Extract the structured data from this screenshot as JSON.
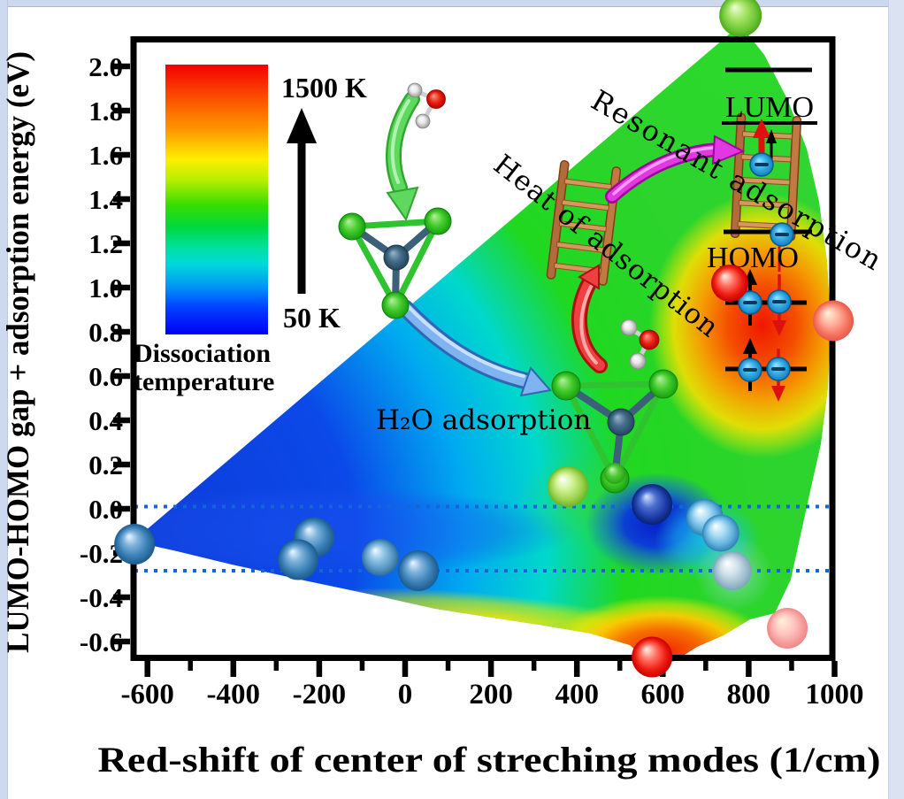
{
  "page": {
    "background": "#ffffff",
    "chrome_color": "#ccd8ee"
  },
  "chart_data": {
    "type": "scatter",
    "title": "",
    "xlabel": "Red-shift of center of streching modes (1/cm)",
    "ylabel": "LUMO-HOMO gap + adsorption energy (eV)",
    "xlim": [
      -650,
      1010
    ],
    "ylim": [
      -0.68,
      2.12
    ],
    "x_ticks": [
      -600,
      -400,
      -200,
      0,
      200,
      400,
      600,
      800,
      1000
    ],
    "y_ticks": [
      2.0,
      1.8,
      1.6,
      1.4,
      1.2,
      1.0,
      0.8,
      0.6,
      0.4,
      0.2,
      0.0,
      -0.2,
      -0.4,
      -0.6
    ],
    "grid": false,
    "reference_lines_y": [
      0.01,
      -0.28
    ],
    "reference_line_color": "#1565d8",
    "colorbar": {
      "top_label": "1500 K",
      "bottom_label": "50 K",
      "caption_line1": "Dissociation",
      "caption_line2": "temperature",
      "gradient_top_to_bottom": [
        "#f40000",
        "#ff9e00",
        "#ffee00",
        "#38dd00",
        "#00d8dc",
        "#0000f4"
      ]
    },
    "background_surface": "interpolated dissociation-temperature color map (blue=cold 50 K, red=hot 1500 K)",
    "series": [
      {
        "name": "cluster data points",
        "points": [
          {
            "x": -630,
            "y": -0.16,
            "r": 23,
            "color": "steelblue"
          },
          {
            "x": -212,
            "y": -0.13,
            "r": 23,
            "color": "steelblue"
          },
          {
            "x": -249,
            "y": -0.23,
            "r": 23,
            "color": "steelblue"
          },
          {
            "x": -58,
            "y": -0.22,
            "r": 21,
            "color": "lightsteel"
          },
          {
            "x": 31,
            "y": -0.28,
            "r": 23,
            "color": "steelblue"
          },
          {
            "x": 379,
            "y": 0.1,
            "r": 23,
            "color": "yellowgreen"
          },
          {
            "x": 488,
            "y": 0.16,
            "r": 12,
            "color": "smallgreen"
          },
          {
            "x": 575,
            "y": 0.02,
            "r": 23,
            "color": "navy"
          },
          {
            "x": 698,
            "y": -0.04,
            "r": 21,
            "color": "skyblue"
          },
          {
            "x": 735,
            "y": -0.11,
            "r": 21,
            "color": "skyblue"
          },
          {
            "x": 762,
            "y": -0.28,
            "r": 22,
            "color": "paleblue"
          },
          {
            "x": 890,
            "y": -0.54,
            "r": 23,
            "color": "pink"
          },
          {
            "x": 575,
            "y": -0.67,
            "r": 23,
            "color": "red"
          },
          {
            "x": 756,
            "y": 1.02,
            "r": 21,
            "color": "red"
          },
          {
            "x": 997,
            "y": 0.85,
            "r": 23,
            "color": "salmon"
          },
          {
            "x": 781,
            "y": 2.23,
            "r": 24,
            "color": "topgreen"
          }
        ]
      }
    ]
  },
  "labels": {
    "h2o": "H₂O adsorption",
    "heat": "Heat of adsorption",
    "resonant": "Resonant adsorption",
    "lumo": "LUMO",
    "homo": "HOMO"
  }
}
